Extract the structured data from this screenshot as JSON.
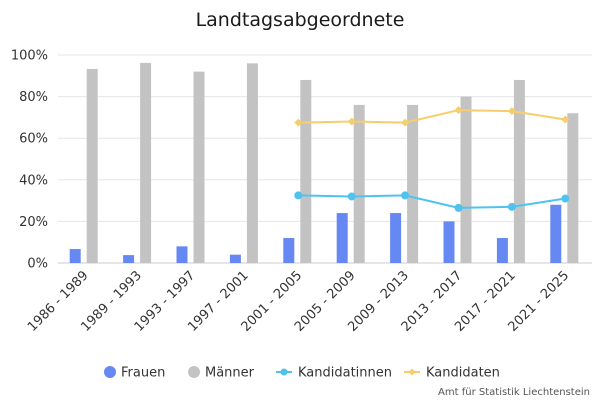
{
  "chart_data": {
    "type": "bar",
    "title": "Landtagsabgeordnete",
    "categories": [
      "1986 - 1989",
      "1989 - 1993",
      "1993 - 1997",
      "1997 - 2001",
      "2001 - 2005",
      "2005 - 2009",
      "2009 - 2013",
      "2013 - 2017",
      "2017 - 2021",
      "2021 - 2025"
    ],
    "ylim": [
      0,
      100
    ],
    "yticks": [
      0,
      20,
      40,
      60,
      80,
      100
    ],
    "ytick_labels": [
      "0%",
      "20%",
      "40%",
      "60%",
      "80%",
      "100%"
    ],
    "grid": true,
    "legend_position": "bottom",
    "series": [
      {
        "name": "Frauen",
        "type": "bar",
        "color": "#6688f2",
        "values": [
          6.7,
          3.8,
          8.0,
          4.0,
          12.0,
          24.0,
          24.0,
          20.0,
          12.0,
          28.0
        ]
      },
      {
        "name": "Männer",
        "type": "bar",
        "color": "#c3c3c3",
        "values": [
          93.3,
          96.2,
          92.0,
          96.0,
          88.0,
          76.0,
          76.0,
          80.0,
          88.0,
          72.0
        ]
      },
      {
        "name": "Kandidatinnen",
        "type": "line",
        "color": "#4fc3ee",
        "values": [
          null,
          null,
          null,
          null,
          32.5,
          32.0,
          32.5,
          26.5,
          27.0,
          31.0
        ]
      },
      {
        "name": "Kandidaten",
        "type": "line",
        "color": "#f7ce6b",
        "values": [
          null,
          null,
          null,
          null,
          67.5,
          68.0,
          67.5,
          73.5,
          73.0,
          69.0
        ]
      }
    ]
  },
  "credit": "Amt für Statistik Liechtenstein"
}
